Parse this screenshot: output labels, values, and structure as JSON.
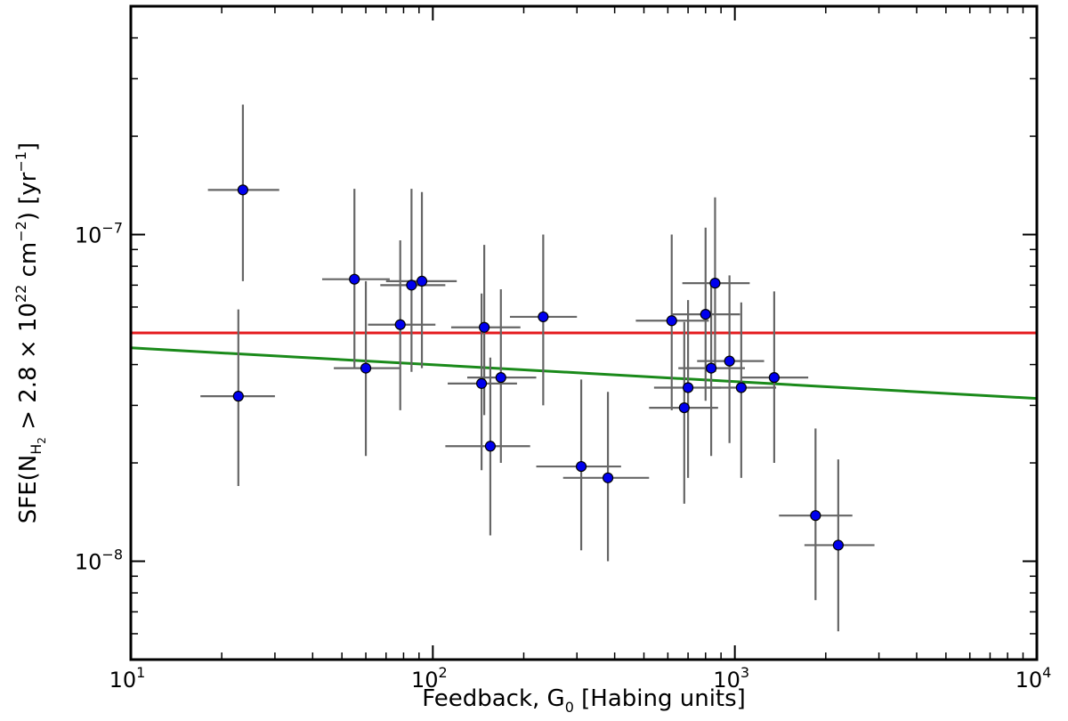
{
  "chart_data": {
    "type": "scatter",
    "title": "",
    "xlabel": "Feedback, G₀ [Habing units]",
    "ylabel": "SFE(N_H₂ > 2.8 × 10²² cm⁻²) [yr⁻¹]",
    "xlabel_parts": {
      "pre": "Feedback, G",
      "sub": "0",
      "post": " [Habing units]"
    },
    "ylabel_parts": {
      "p1": "SFE(N",
      "sub1": "H",
      "sub2": "2",
      "p2": " > 2.8 × 10",
      "sup1": "22",
      "p3": " cm",
      "sup2": "−2",
      "p4": ") [yr",
      "sup3": "−1",
      "p5": "]"
    },
    "xscale": "log",
    "yscale": "log",
    "xlim": [
      10,
      10000
    ],
    "ylim": [
      5e-09,
      5e-07
    ],
    "grid": false,
    "x_ticks": [
      {
        "base": "10",
        "exp": "1",
        "value": 10
      },
      {
        "base": "10",
        "exp": "2",
        "value": 100
      },
      {
        "base": "10",
        "exp": "3",
        "value": 1000
      },
      {
        "base": "10",
        "exp": "4",
        "value": 10000
      }
    ],
    "y_ticks": [
      {
        "base": "10",
        "exp": "−8",
        "value": 1e-08
      },
      {
        "base": "10",
        "exp": "−7",
        "value": 1e-07
      }
    ],
    "points": [
      {
        "x": 23.5,
        "y": 1.37e-07,
        "xerr": [
          18,
          31
        ],
        "yerr": [
          7.2e-08,
          2.5e-07
        ]
      },
      {
        "x": 22.7,
        "y": 3.2e-08,
        "xerr": [
          17,
          30
        ],
        "yerr": [
          1.7e-08,
          5.9e-08
        ]
      },
      {
        "x": 55,
        "y": 7.3e-08,
        "xerr": [
          43,
          72
        ],
        "yerr": [
          3.9e-08,
          1.38e-07
        ]
      },
      {
        "x": 60,
        "y": 3.9e-08,
        "xerr": [
          47,
          78
        ],
        "yerr": [
          2.1e-08,
          7.2e-08
        ]
      },
      {
        "x": 78,
        "y": 5.3e-08,
        "xerr": [
          61,
          102
        ],
        "yerr": [
          2.9e-08,
          9.6e-08
        ]
      },
      {
        "x": 85,
        "y": 7e-08,
        "xerr": [
          67,
          110
        ],
        "yerr": [
          3.8e-08,
          1.38e-07
        ]
      },
      {
        "x": 92,
        "y": 7.2e-08,
        "xerr": [
          70,
          120
        ],
        "yerr": [
          3.9e-08,
          1.35e-07
        ]
      },
      {
        "x": 148,
        "y": 5.2e-08,
        "xerr": [
          115,
          195
        ],
        "yerr": [
          2.8e-08,
          9.3e-08
        ]
      },
      {
        "x": 145,
        "y": 3.5e-08,
        "xerr": [
          112,
          190
        ],
        "yerr": [
          1.9e-08,
          6.6e-08
        ]
      },
      {
        "x": 155,
        "y": 2.25e-08,
        "xerr": [
          110,
          210
        ],
        "yerr": [
          1.2e-08,
          4.2e-08
        ]
      },
      {
        "x": 168,
        "y": 3.65e-08,
        "xerr": [
          130,
          220
        ],
        "yerr": [
          2e-08,
          6.8e-08
        ]
      },
      {
        "x": 232,
        "y": 5.6e-08,
        "xerr": [
          180,
          300
        ],
        "yerr": [
          3e-08,
          1e-07
        ]
      },
      {
        "x": 310,
        "y": 1.95e-08,
        "xerr": [
          220,
          420
        ],
        "yerr": [
          1.08e-08,
          3.6e-08
        ]
      },
      {
        "x": 380,
        "y": 1.8e-08,
        "xerr": [
          270,
          520
        ],
        "yerr": [
          1e-08,
          3.3e-08
        ]
      },
      {
        "x": 618,
        "y": 5.45e-08,
        "xerr": [
          470,
          820
        ],
        "yerr": [
          2.9e-08,
          1e-07
        ]
      },
      {
        "x": 680,
        "y": 2.95e-08,
        "xerr": [
          520,
          880
        ],
        "yerr": [
          1.5e-08,
          5.4e-08
        ]
      },
      {
        "x": 700,
        "y": 3.4e-08,
        "xerr": [
          540,
          900
        ],
        "yerr": [
          1.8e-08,
          6.3e-08
        ]
      },
      {
        "x": 800,
        "y": 5.7e-08,
        "xerr": [
          620,
          1040
        ],
        "yerr": [
          3.1e-08,
          1.05e-07
        ]
      },
      {
        "x": 835,
        "y": 3.9e-08,
        "xerr": [
          650,
          1080
        ],
        "yerr": [
          2.1e-08,
          7.1e-08
        ]
      },
      {
        "x": 860,
        "y": 7.1e-08,
        "xerr": [
          670,
          1120
        ],
        "yerr": [
          3.8e-08,
          1.3e-07
        ]
      },
      {
        "x": 960,
        "y": 4.1e-08,
        "xerr": [
          750,
          1250
        ],
        "yerr": [
          2.3e-08,
          7.5e-08
        ]
      },
      {
        "x": 1050,
        "y": 3.4e-08,
        "xerr": [
          810,
          1370
        ],
        "yerr": [
          1.8e-08,
          6.2e-08
        ]
      },
      {
        "x": 1350,
        "y": 3.65e-08,
        "xerr": [
          1050,
          1750
        ],
        "yerr": [
          2e-08,
          6.7e-08
        ]
      },
      {
        "x": 1850,
        "y": 1.38e-08,
        "xerr": [
          1400,
          2450
        ],
        "yerr": [
          7.6e-09,
          2.55e-08
        ]
      },
      {
        "x": 2200,
        "y": 1.12e-08,
        "xerr": [
          1700,
          2900
        ],
        "yerr": [
          6.1e-09,
          2.05e-08
        ]
      }
    ],
    "lines": [
      {
        "color": "#e41a1c",
        "x": [
          10,
          10000
        ],
        "y": [
          5e-08,
          5e-08
        ]
      },
      {
        "color": "#1a8a1a",
        "x": [
          10,
          10000
        ],
        "y": [
          4.5e-08,
          3.15e-08
        ]
      }
    ],
    "colors": {
      "marker": "#0000ee",
      "marker_edge": "#000000",
      "errorbar": "#666666",
      "axes": "#000000"
    }
  }
}
